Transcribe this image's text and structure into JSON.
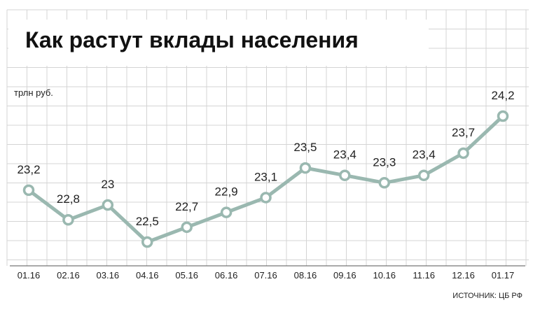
{
  "chart_data": {
    "type": "line",
    "title": "Как растут вклады населения",
    "unit_label": "трлн руб.",
    "source": "ИСТОЧНИК: ЦБ РФ",
    "categories": [
      "01.16",
      "02.16",
      "03.16",
      "04.16",
      "05.16",
      "06.16",
      "07.16",
      "08.16",
      "09.16",
      "10.16",
      "11.16",
      "12.16",
      "01.17"
    ],
    "values": [
      23.2,
      22.8,
      23.0,
      22.5,
      22.7,
      22.9,
      23.1,
      23.5,
      23.4,
      23.3,
      23.4,
      23.7,
      24.2
    ],
    "value_labels": [
      "23,2",
      "22,8",
      "23",
      "22,5",
      "22,7",
      "22,9",
      "23,1",
      "23,5",
      "23,4",
      "23,3",
      "23,4",
      "23,7",
      "24,2"
    ],
    "ylim": [
      22.3,
      24.4
    ],
    "grid": true,
    "colors": {
      "line": "#9ab8b0",
      "marker_fill": "#ffffff",
      "grid": "#d4d4d4",
      "text": "#222222"
    }
  }
}
